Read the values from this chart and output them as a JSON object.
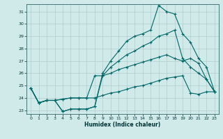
{
  "xlabel": "Humidex (Indice chaleur)",
  "bg_color": "#d0eaea",
  "grid_color": "#b0cccc",
  "line_color": "#006666",
  "xlim": [
    -0.5,
    23.5
  ],
  "ylim": [
    22.7,
    31.6
  ],
  "xticks": [
    0,
    1,
    2,
    3,
    4,
    5,
    6,
    7,
    8,
    9,
    10,
    11,
    12,
    13,
    14,
    15,
    16,
    17,
    18,
    19,
    20,
    21,
    22,
    23
  ],
  "yticks": [
    23,
    24,
    25,
    26,
    27,
    28,
    29,
    30,
    31
  ],
  "line1_x": [
    0,
    1,
    2,
    3,
    4,
    5,
    6,
    7,
    8,
    9,
    10,
    11,
    12,
    13,
    14,
    15,
    16,
    17,
    18,
    19,
    20,
    21,
    22,
    23
  ],
  "line1_y": [
    24.8,
    23.6,
    23.8,
    23.8,
    22.9,
    23.1,
    23.1,
    23.1,
    23.3,
    26.0,
    27.0,
    27.8,
    28.6,
    29.0,
    29.2,
    29.5,
    31.5,
    31.0,
    30.8,
    29.2,
    28.5,
    27.2,
    26.5,
    24.5
  ],
  "line2_x": [
    0,
    1,
    2,
    3,
    4,
    5,
    6,
    7,
    8,
    9,
    10,
    11,
    12,
    13,
    14,
    15,
    16,
    17,
    18,
    19,
    20,
    21,
    22,
    23
  ],
  "line2_y": [
    24.8,
    23.6,
    23.8,
    23.8,
    22.9,
    23.1,
    23.1,
    23.1,
    23.3,
    25.8,
    26.5,
    27.0,
    27.5,
    27.8,
    28.2,
    28.5,
    29.0,
    29.2,
    29.5,
    27.2,
    26.5,
    26.0,
    25.5,
    24.5
  ],
  "line3_x": [
    0,
    1,
    2,
    3,
    4,
    5,
    6,
    7,
    8,
    9,
    10,
    11,
    12,
    13,
    14,
    15,
    16,
    17,
    18,
    19,
    20,
    21,
    22,
    23
  ],
  "line3_y": [
    24.8,
    23.6,
    23.8,
    23.8,
    23.9,
    24.0,
    24.0,
    24.0,
    25.8,
    25.8,
    26.0,
    26.3,
    26.5,
    26.7,
    26.9,
    27.1,
    27.3,
    27.5,
    27.2,
    27.0,
    27.2,
    26.8,
    25.5,
    24.5
  ],
  "line4_x": [
    0,
    1,
    2,
    3,
    4,
    5,
    6,
    7,
    8,
    9,
    10,
    11,
    12,
    13,
    14,
    15,
    16,
    17,
    18,
    19,
    20,
    21,
    22,
    23
  ],
  "line4_y": [
    24.8,
    23.6,
    23.8,
    23.8,
    23.9,
    24.0,
    24.0,
    24.0,
    24.0,
    24.2,
    24.4,
    24.5,
    24.7,
    24.9,
    25.0,
    25.2,
    25.4,
    25.6,
    25.7,
    25.8,
    24.4,
    24.3,
    24.5,
    24.5
  ]
}
